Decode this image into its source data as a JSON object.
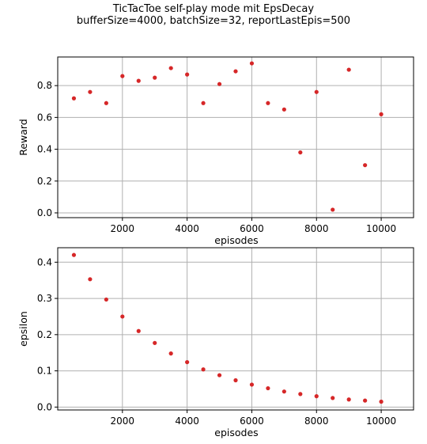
{
  "figure": {
    "title_line1": "TicTacToe self-play mode mit EpsDecay",
    "title_line2": "bufferSize=4000, batchSize=32, reportLastEpis=500"
  },
  "colors": {
    "marker": "#d62728",
    "grid": "#b0b0b0",
    "axes": "#000000"
  },
  "chart_data": [
    {
      "type": "scatter",
      "xlabel": "episodes",
      "ylabel": "Reward",
      "xlim": [
        0,
        11000
      ],
      "ylim": [
        -0.03,
        0.98
      ],
      "xticks": [
        2000,
        4000,
        6000,
        8000,
        10000
      ],
      "yticks": [
        0.0,
        0.2,
        0.4,
        0.6,
        0.8
      ],
      "grid": true,
      "x": [
        500,
        1000,
        1500,
        2000,
        2500,
        3000,
        3500,
        4000,
        4500,
        5000,
        5500,
        6000,
        6500,
        7000,
        7500,
        8000,
        8500,
        9000,
        9500,
        10000
      ],
      "y": [
        0.72,
        0.76,
        0.69,
        0.86,
        0.83,
        0.85,
        0.91,
        0.87,
        0.69,
        0.81,
        0.89,
        0.94,
        0.69,
        0.65,
        0.38,
        0.76,
        0.02,
        0.9,
        0.3,
        0.62
      ]
    },
    {
      "type": "scatter",
      "xlabel": "episodes",
      "ylabel": "epsilon",
      "xlim": [
        0,
        11000
      ],
      "ylim": [
        -0.008,
        0.44
      ],
      "xticks": [
        2000,
        4000,
        6000,
        8000,
        10000
      ],
      "yticks": [
        0.0,
        0.1,
        0.2,
        0.3,
        0.4
      ],
      "grid": true,
      "x": [
        500,
        1000,
        1500,
        2000,
        2500,
        3000,
        3500,
        4000,
        4500,
        5000,
        5500,
        6000,
        6500,
        7000,
        7500,
        8000,
        8500,
        9000,
        9500,
        10000
      ],
      "y": [
        0.42,
        0.353,
        0.297,
        0.25,
        0.21,
        0.177,
        0.148,
        0.124,
        0.104,
        0.088,
        0.074,
        0.062,
        0.052,
        0.043,
        0.036,
        0.03,
        0.025,
        0.021,
        0.018,
        0.015
      ]
    }
  ]
}
